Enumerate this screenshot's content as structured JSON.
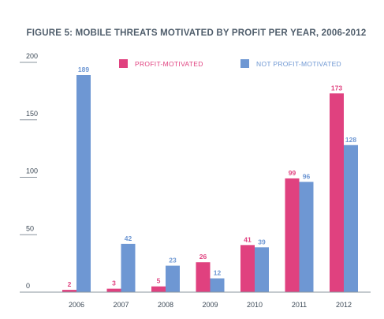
{
  "chart_data": {
    "type": "bar",
    "title": "FIGURE 5: MOBILE THREATS MOTIVATED BY PROFIT PER YEAR, 2006-2012",
    "categories": [
      "2006",
      "2007",
      "2008",
      "2009",
      "2010",
      "2011",
      "2012"
    ],
    "series": [
      {
        "name": "PROFIT-MOTIVATED",
        "color": "#e0417f",
        "values": [
          2,
          3,
          5,
          26,
          41,
          99,
          173
        ]
      },
      {
        "name": "NOT PROFIT-MOTIVATED",
        "color": "#6e97d3",
        "values": [
          189,
          42,
          23,
          12,
          39,
          96,
          128
        ]
      }
    ],
    "yticks": [
      0,
      50,
      100,
      150,
      200
    ],
    "ylim": [
      0,
      200
    ],
    "grid": false,
    "legend_position": "top"
  }
}
